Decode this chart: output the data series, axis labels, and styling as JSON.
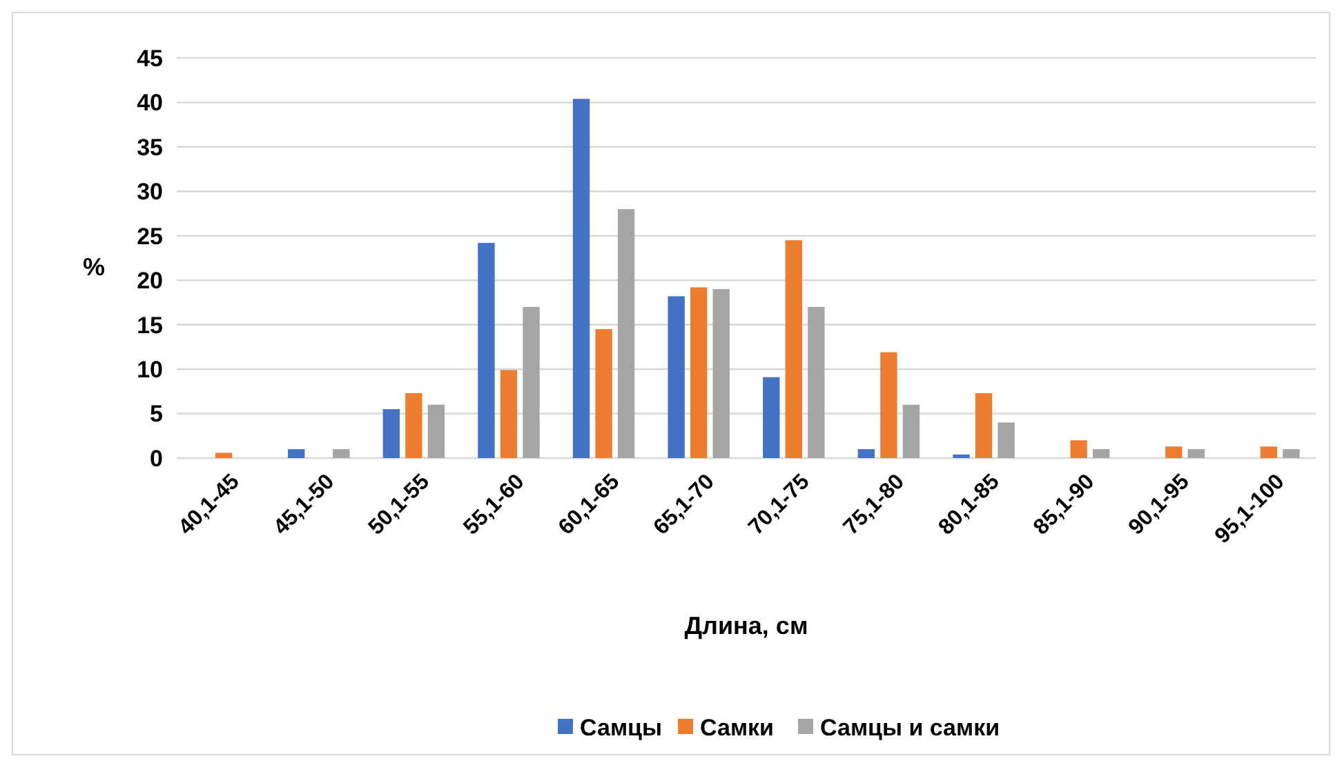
{
  "chart_data": {
    "type": "bar",
    "xlabel": "Длина, см",
    "ylabel": "%",
    "categories": [
      "40,1-45",
      "45,1-50",
      "50,1-55",
      "55,1-60",
      "60,1-65",
      "65,1-70",
      "70,1-75",
      "75,1-80",
      "80,1-85",
      "85,1-90",
      "90,1-95",
      "95,1-100"
    ],
    "series": [
      {
        "name": "Самцы",
        "color": "#4472c4",
        "values": [
          null,
          1,
          5.5,
          24.2,
          40.4,
          18.2,
          9.1,
          1,
          0.4,
          null,
          null,
          null
        ]
      },
      {
        "name": "Самки",
        "color": "#ed7d31",
        "values": [
          0.6,
          null,
          7.3,
          9.9,
          14.5,
          19.2,
          24.5,
          11.9,
          7.3,
          2,
          1.3,
          1.3
        ]
      },
      {
        "name": "Самцы и самки",
        "color": "#a5a5a5",
        "values": [
          null,
          1,
          6,
          17,
          28,
          19,
          17,
          6,
          4,
          1,
          1,
          1
        ]
      }
    ],
    "ylim": [
      0,
      45
    ],
    "yticks": [
      0,
      5,
      10,
      15,
      20,
      25,
      30,
      35,
      40,
      45
    ],
    "grid": "y",
    "legend": "bottom"
  }
}
